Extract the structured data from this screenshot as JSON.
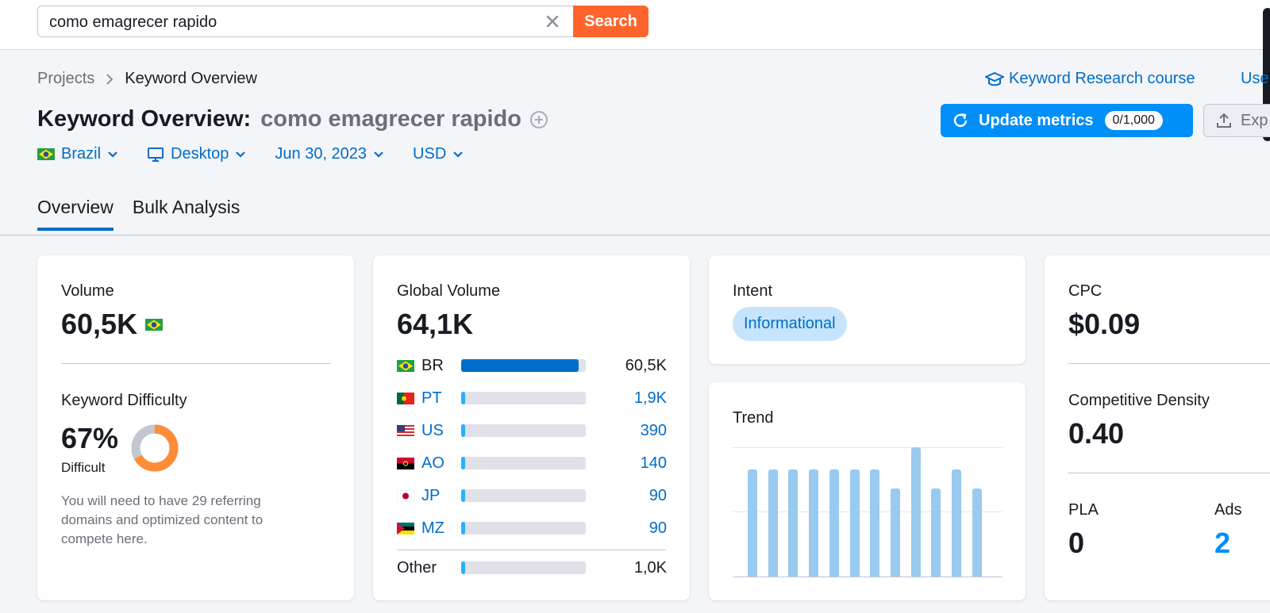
{
  "search": {
    "value": "como emagrecer rapido",
    "button_label": "Search"
  },
  "breadcrumb": {
    "parent": "Projects",
    "current": "Keyword Overview"
  },
  "links": {
    "course": "Keyword Research course",
    "user_manual": "Use"
  },
  "title": {
    "prefix": "Keyword Overview:",
    "keyword": "como emagrecer rapido"
  },
  "actions": {
    "update_label": "Update metrics",
    "update_counter": "0/1,000",
    "export_label": "Exp"
  },
  "filters": {
    "country": "Brazil",
    "device": "Desktop",
    "date": "Jun 30, 2023",
    "currency": "USD"
  },
  "tabs": [
    {
      "label": "Overview",
      "active": true
    },
    {
      "label": "Bulk Analysis",
      "active": false
    }
  ],
  "volume": {
    "label": "Volume",
    "value": "60,5K"
  },
  "keyword_difficulty": {
    "label": "Keyword Difficulty",
    "value": "67%",
    "level": "Difficult",
    "percent": 67,
    "description": "You will need to have 29 referring domains and optimized content to compete here."
  },
  "global_volume": {
    "label": "Global Volume",
    "value": "64,1K",
    "rows": [
      {
        "code": "BR",
        "value": "60,5K",
        "share": 0.94,
        "flag": "brazil-flag"
      },
      {
        "code": "PT",
        "value": "1,9K",
        "share": 0.03,
        "flag": "portugal-flag"
      },
      {
        "code": "US",
        "value": "390",
        "share": 0.03,
        "flag": "usa-flag"
      },
      {
        "code": "AO",
        "value": "140",
        "share": 0.03,
        "flag": "angola-flag"
      },
      {
        "code": "JP",
        "value": "90",
        "share": 0.03,
        "flag": "japan-flag"
      },
      {
        "code": "MZ",
        "value": "90",
        "share": 0.03,
        "flag": "mozambique-flag"
      }
    ],
    "other": {
      "code": "Other",
      "value": "1,0K",
      "share": 0.03
    }
  },
  "intent": {
    "label": "Intent",
    "value": "Informational"
  },
  "trend": {
    "label": "Trend",
    "values": [
      0.83,
      0.83,
      0.83,
      0.83,
      0.83,
      0.83,
      0.83,
      0.68,
      1.0,
      0.68,
      0.83,
      0.68
    ]
  },
  "cpc": {
    "label": "CPC",
    "value": "$0.09"
  },
  "competitive_density": {
    "label": "Competitive Density",
    "value": "0.40"
  },
  "pla": {
    "label": "PLA",
    "value": "0"
  },
  "ads": {
    "label": "Ads",
    "value": "2"
  },
  "colors": {
    "accent": "#006dca",
    "search_button": "#ff642d",
    "update_button": "#008ff8",
    "kd_orange": "#ff8c37",
    "bar_dark": "#006dca",
    "bar_light": "#2bb0f9",
    "trend_bar": "#99caf0"
  }
}
